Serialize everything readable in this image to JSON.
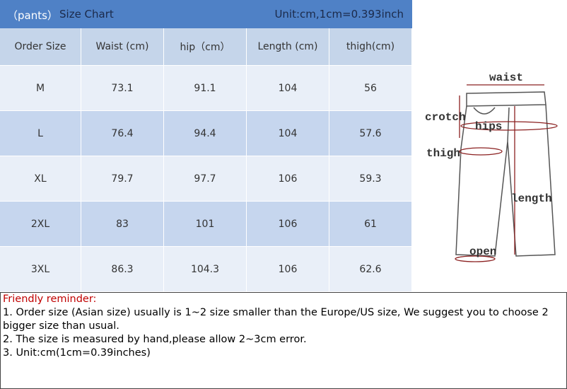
{
  "header": {
    "tag": "（pants）",
    "title": "Size Chart",
    "unit": "Unit:cm,1cm=0.393inch"
  },
  "table": {
    "columns": [
      "Order Size",
      "Waist (cm)",
      "hip（cm）",
      "Length (cm)",
      "thigh(cm)"
    ],
    "rows": [
      [
        "M",
        "73.1",
        "91.1",
        "104",
        "56"
      ],
      [
        "L",
        "76.4",
        "94.4",
        "104",
        "57.6"
      ],
      [
        "XL",
        "79.7",
        "97.7",
        "106",
        "59.3"
      ],
      [
        "2XL",
        "83",
        "101",
        "106",
        "61"
      ],
      [
        "3XL",
        "86.3",
        "104.3",
        "106",
        "62.6"
      ]
    ]
  },
  "diagram": {
    "labels": {
      "waist": "waist",
      "crotch": "crotch",
      "hips": "hips",
      "thigh": "thigh",
      "length": "length",
      "open": "open"
    }
  },
  "note": {
    "title": "Friendly reminder:",
    "lines": [
      "1. Order size (Asian size) usually is 1~2 size smaller than the Europe/US size, We suggest you to choose 2 bigger size than usual.",
      "2. The size is measured by hand,please allow 2~3cm error.",
      "3. Unit:cm(1cm=0.39inches)"
    ]
  }
}
